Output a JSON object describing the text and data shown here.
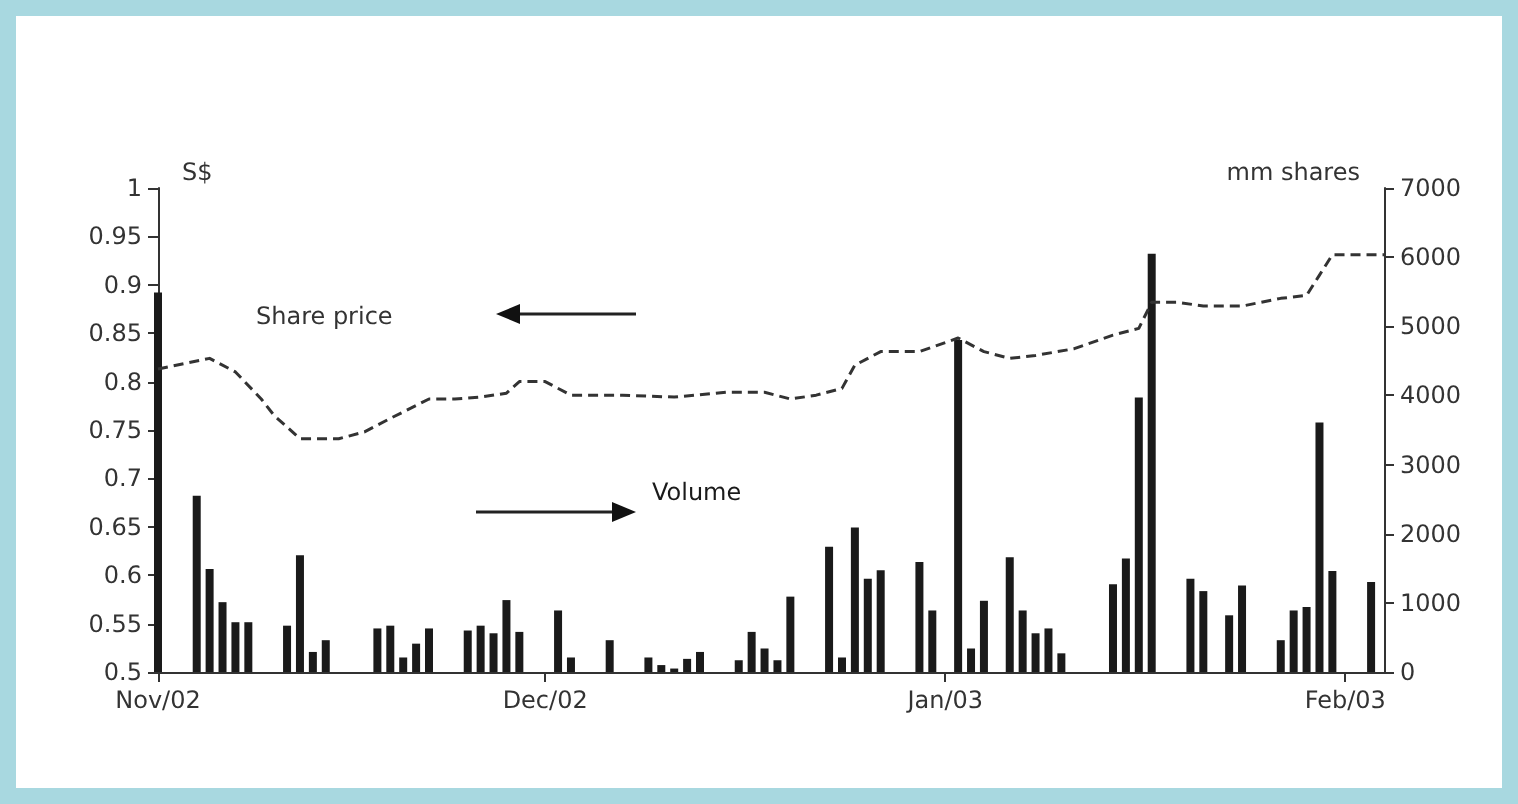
{
  "chart_data": {
    "type": "bar",
    "xlim": [
      "2002-11-01",
      "2003-02-04"
    ],
    "xticks": [
      {
        "value": "2002-11-01",
        "label": "Nov/02"
      },
      {
        "value": "2002-12-01",
        "label": "Dec/02"
      },
      {
        "value": "2003-01-01",
        "label": "Jan/03"
      },
      {
        "value": "2003-02-01",
        "label": "Feb/03"
      }
    ],
    "ylabel": "S$",
    "y2label": "mm shares",
    "ylim": [
      0.5,
      1
    ],
    "yticks": [
      0.5,
      0.55,
      0.6,
      0.65,
      0.7,
      0.75,
      0.8,
      0.85,
      0.9,
      0.95,
      1
    ],
    "y2lim": [
      0,
      7000
    ],
    "y2ticks": [
      0,
      1000,
      2000,
      3000,
      4000,
      5000,
      6000,
      7000
    ],
    "grid": false,
    "legend": false,
    "series": [
      {
        "name": "Share price",
        "type": "line",
        "axis": "y",
        "color": "#333333",
        "line_style": "dashed",
        "marker": "none",
        "x": [
          "2002-11-01",
          "2002-11-05",
          "2002-11-07",
          "2002-11-09",
          "2002-11-10",
          "2002-11-12",
          "2002-11-15",
          "2002-11-17",
          "2002-11-19",
          "2002-11-22",
          "2002-11-24",
          "2002-11-26",
          "2002-11-28",
          "2002-11-29",
          "2002-12-01",
          "2002-12-03",
          "2002-12-07",
          "2002-12-11",
          "2002-12-15",
          "2002-12-18",
          "2002-12-20",
          "2002-12-22",
          "2002-12-24",
          "2002-12-25",
          "2002-12-27",
          "2002-12-30",
          "2003-01-02",
          "2003-01-04",
          "2003-01-06",
          "2003-01-08",
          "2003-01-11",
          "2003-01-14",
          "2003-01-16",
          "2003-01-17",
          "2003-01-19",
          "2003-01-21",
          "2003-01-24",
          "2003-01-27",
          "2003-01-29",
          "2003-01-30",
          "2003-01-31",
          "2003-02-04"
        ],
        "values": [
          0.813,
          0.824,
          0.81,
          0.782,
          0.765,
          0.741,
          0.741,
          0.748,
          0.762,
          0.782,
          0.782,
          0.784,
          0.788,
          0.8,
          0.8,
          0.786,
          0.786,
          0.784,
          0.789,
          0.789,
          0.782,
          0.786,
          0.793,
          0.817,
          0.831,
          0.831,
          0.845,
          0.831,
          0.824,
          0.827,
          0.834,
          0.848,
          0.855,
          0.882,
          0.882,
          0.878,
          0.878,
          0.886,
          0.889,
          0.91,
          0.931,
          0.931
        ]
      },
      {
        "name": "Volume",
        "axis": "y2",
        "color": "#1a1a1a",
        "x": [
          "2002-11-01",
          "2002-11-04",
          "2002-11-05",
          "2002-11-06",
          "2002-11-07",
          "2002-11-08",
          "2002-11-11",
          "2002-11-12",
          "2002-11-13",
          "2002-11-14",
          "2002-11-18",
          "2002-11-19",
          "2002-11-20",
          "2002-11-21",
          "2002-11-22",
          "2002-11-25",
          "2002-11-26",
          "2002-11-27",
          "2002-11-28",
          "2002-11-29",
          "2002-12-02",
          "2002-12-03",
          "2002-12-06",
          "2002-12-09",
          "2002-12-10",
          "2002-12-11",
          "2002-12-12",
          "2002-12-13",
          "2002-12-16",
          "2002-12-17",
          "2002-12-18",
          "2002-12-19",
          "2002-12-20",
          "2002-12-23",
          "2002-12-24",
          "2002-12-25",
          "2002-12-26",
          "2002-12-27",
          "2002-12-30",
          "2002-12-31",
          "2003-01-02",
          "2003-01-03",
          "2003-01-04",
          "2003-01-06",
          "2003-01-07",
          "2003-01-08",
          "2003-01-09",
          "2003-01-10",
          "2003-01-14",
          "2003-01-15",
          "2003-01-16",
          "2003-01-17",
          "2003-01-20",
          "2003-01-21",
          "2003-01-23",
          "2003-01-24",
          "2003-01-27",
          "2003-01-28",
          "2003-01-29",
          "2003-01-30",
          "2003-01-31",
          "2003-02-03"
        ],
        "values": [
          5490,
          2550,
          1490,
          1010,
          720,
          720,
          670,
          1690,
          290,
          460,
          630,
          670,
          210,
          410,
          630,
          600,
          670,
          560,
          1040,
          580,
          890,
          210,
          460,
          210,
          100,
          50,
          190,
          290,
          170,
          580,
          340,
          170,
          1090,
          1810,
          210,
          2090,
          1350,
          1470,
          1590,
          890,
          4800,
          340,
          1030,
          1660,
          890,
          560,
          630,
          270,
          1270,
          1640,
          3970,
          6050,
          1350,
          1170,
          820,
          1250,
          460,
          890,
          940,
          3610,
          1460,
          1300
        ]
      }
    ]
  }
}
